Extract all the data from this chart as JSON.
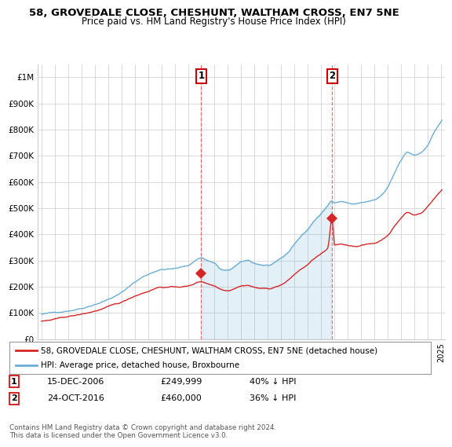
{
  "title": "58, GROVEDALE CLOSE, CHESHUNT, WALTHAM CROSS, EN7 5NE",
  "subtitle": "Price paid vs. HM Land Registry's House Price Index (HPI)",
  "background_color": "#ffffff",
  "grid_color": "#cccccc",
  "hpi_color": "#6baed6",
  "price_color": "#d62728",
  "legend_label1": "58, GROVEDALE CLOSE, CHESHUNT, WALTHAM CROSS, EN7 5NE (detached house)",
  "legend_label2": "HPI: Average price, detached house, Broxbourne",
  "note1_date": "15-DEC-2006",
  "note1_price": "£249,999",
  "note1_pct": "40% ↓ HPI",
  "note2_date": "24-OCT-2016",
  "note2_price": "£460,000",
  "note2_pct": "36% ↓ HPI",
  "footer": "Contains HM Land Registry data © Crown copyright and database right 2024.\nThis data is licensed under the Open Government Licence v3.0.",
  "ylim": [
    0,
    1050000
  ],
  "yticks": [
    0,
    100000,
    200000,
    300000,
    400000,
    500000,
    600000,
    700000,
    800000,
    900000,
    1000000
  ],
  "ytick_labels": [
    "£0",
    "£100K",
    "£200K",
    "£300K",
    "£400K",
    "£500K",
    "£600K",
    "£700K",
    "£800K",
    "£900K",
    "£1M"
  ],
  "vline1_x": 2007.0,
  "vline2_x": 2016.83,
  "marker1_x": 2007.0,
  "marker1_y": 249999,
  "marker2_x": 2016.83,
  "marker2_y": 460000,
  "xlim_left": 1994.7,
  "xlim_right": 2025.3
}
